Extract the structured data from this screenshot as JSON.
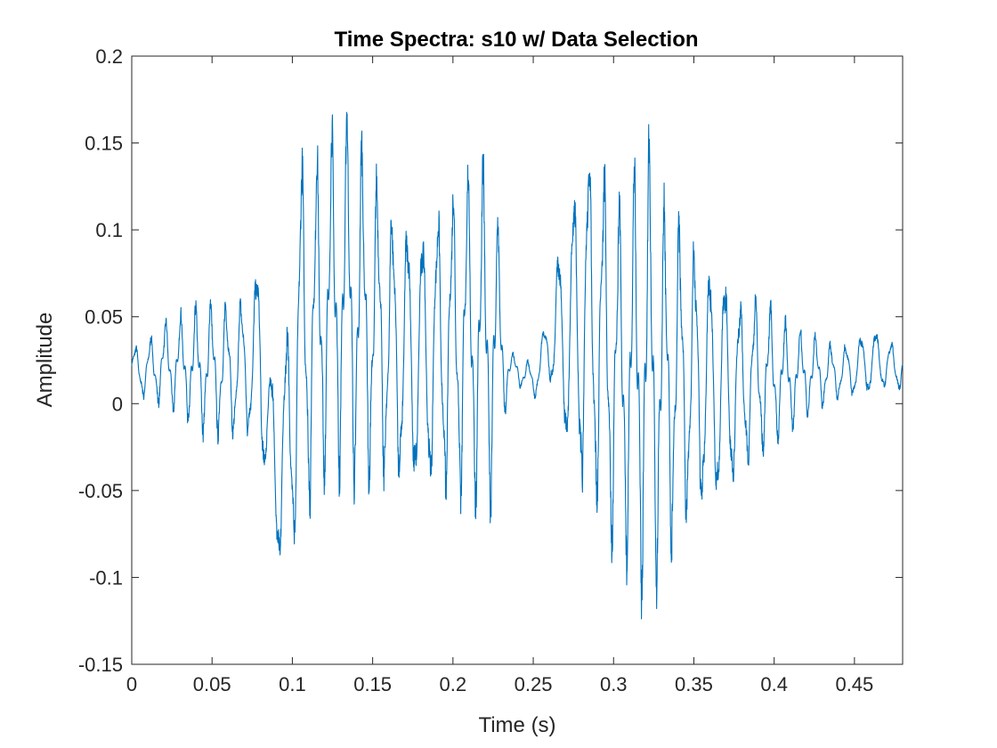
{
  "chart_data": {
    "type": "line",
    "title": "Time Spectra: s10 w/ Data Selection",
    "xlabel": "Time (s)",
    "ylabel": "Amplitude",
    "xlim": [
      0,
      0.48
    ],
    "ylim": [
      -0.15,
      0.2
    ],
    "grid": false,
    "legend": "none",
    "line_color": "#0072BD",
    "xticks": [
      0,
      0.05,
      0.1,
      0.15,
      0.2,
      0.25,
      0.3,
      0.35,
      0.4,
      0.45
    ],
    "xtick_labels": [
      "0",
      "0.05",
      "0.1",
      "0.15",
      "0.2",
      "0.25",
      "0.3",
      "0.35",
      "0.4",
      "0.45"
    ],
    "yticks": [
      -0.15,
      -0.1,
      -0.05,
      0,
      0.05,
      0.1,
      0.15,
      0.2
    ],
    "ytick_labels": [
      "-0.15",
      "-0.1",
      "-0.05",
      "0",
      "0.05",
      "0.1",
      "0.15",
      "0.2"
    ],
    "series": [
      {
        "envelope": {
          "t": [
            0,
            0.01,
            0.02,
            0.03,
            0.04,
            0.05,
            0.06,
            0.07,
            0.075,
            0.08,
            0.085,
            0.09,
            0.095,
            0.1,
            0.105,
            0.11,
            0.12,
            0.13,
            0.135,
            0.14,
            0.15,
            0.16,
            0.17,
            0.18,
            0.19,
            0.2,
            0.21,
            0.22,
            0.225,
            0.23,
            0.235,
            0.24,
            0.25,
            0.26,
            0.265,
            0.27,
            0.28,
            0.29,
            0.3,
            0.31,
            0.32,
            0.33,
            0.34,
            0.35,
            0.36,
            0.37,
            0.38,
            0.39,
            0.4,
            0.41,
            0.42,
            0.43,
            0.44,
            0.45,
            0.46,
            0.47,
            0.48
          ],
          "max": [
            0.035,
            0.04,
            0.05,
            0.055,
            0.06,
            0.065,
            0.065,
            0.07,
            0.07,
            0.112,
            0.04,
            0.02,
            0.05,
            0.085,
            0.16,
            0.15,
            0.165,
            0.175,
            0.18,
            0.17,
            0.15,
            0.13,
            0.125,
            0.12,
            0.13,
            0.14,
            0.15,
            0.15,
            0.145,
            0.09,
            0.03,
            0.03,
            0.025,
            0.06,
            0.1,
            0.11,
            0.175,
            0.17,
            0.13,
            0.14,
            0.175,
            0.13,
            0.12,
            0.11,
            0.1,
            0.09,
            0.07,
            0.07,
            0.06,
            0.05,
            0.045,
            0.04,
            0.035,
            0.04,
            0.05,
            0.04,
            0.035
          ],
          "min": [
            0.005,
            -0.002,
            -0.005,
            -0.01,
            -0.02,
            -0.025,
            -0.025,
            -0.03,
            -0.03,
            -0.05,
            -0.065,
            -0.11,
            -0.1,
            -0.11,
            -0.07,
            -0.08,
            -0.06,
            -0.055,
            -0.06,
            -0.065,
            -0.06,
            -0.06,
            -0.065,
            -0.07,
            -0.07,
            -0.07,
            -0.075,
            -0.078,
            -0.07,
            -0.03,
            0.01,
            0.01,
            0,
            0.01,
            -0.02,
            -0.04,
            -0.08,
            -0.085,
            -0.1,
            -0.11,
            -0.135,
            -0.11,
            -0.09,
            -0.085,
            -0.08,
            -0.07,
            -0.05,
            -0.04,
            -0.03,
            -0.02,
            -0.01,
            -0.005,
            0,
            0,
            0,
            0.005,
            0.005
          ]
        }
      }
    ]
  }
}
